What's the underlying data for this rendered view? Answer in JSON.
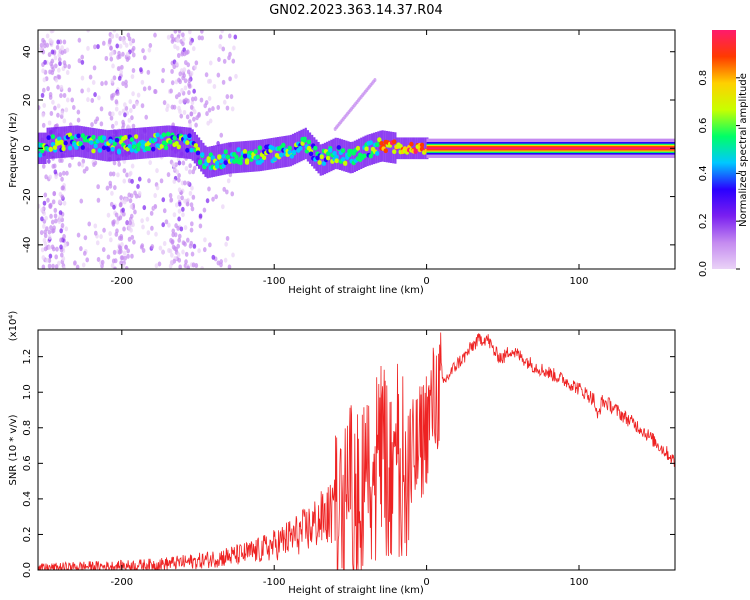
{
  "figure_title": "GN02.2023.363.14.37.R04",
  "chart_data": [
    {
      "type": "heatmap",
      "xlabel": "Height of straight line (km)",
      "ylabel": "Frequency (Hz)",
      "xlim": [
        -255,
        163
      ],
      "ylim": [
        -50,
        49
      ],
      "xticks": [
        -200,
        -100,
        0,
        100
      ],
      "yticks": [
        -40,
        -20,
        0,
        20,
        40
      ],
      "colorbar": {
        "label": "Normalized spectral amplitude",
        "range": [
          0,
          1
        ],
        "ticks": [
          0.0,
          0.2,
          0.4,
          0.6,
          0.8
        ],
        "colors": [
          "#ead3f7",
          "#c48af0",
          "#7a1ff0",
          "#2a00ff",
          "#00c8ff",
          "#00ff66",
          "#c8ff00",
          "#ffd000",
          "#ff3a00",
          "#ff1a6c"
        ]
      },
      "description_points": {
        "band_center_hz": [
          [
            -250,
            2
          ],
          [
            -230,
            3
          ],
          [
            -210,
            1
          ],
          [
            -190,
            2
          ],
          [
            -170,
            3
          ],
          [
            -155,
            2
          ],
          [
            -145,
            -6
          ],
          [
            -130,
            -4
          ],
          [
            -110,
            -3
          ],
          [
            -90,
            -1
          ],
          [
            -80,
            2
          ],
          [
            -70,
            -5
          ],
          [
            -60,
            -2
          ],
          [
            -50,
            -4
          ],
          [
            -40,
            -1
          ],
          [
            -30,
            1
          ],
          [
            -20,
            0
          ],
          [
            -10,
            0
          ],
          [
            0,
            0
          ],
          [
            50,
            0
          ],
          [
            100,
            0
          ],
          [
            163,
            0
          ]
        ]
      }
    },
    {
      "type": "line",
      "xlabel": "Height of straight line (km)",
      "ylabel": "SNR (10 * v/v)",
      "y_multiplier": "(x10⁴)",
      "xlim": [
        -255,
        163
      ],
      "ylim": [
        0,
        1.35
      ],
      "xticks": [
        -200,
        -100,
        0,
        100
      ],
      "yticks": [
        0.0,
        0.2,
        0.4,
        0.6,
        0.8,
        1.0,
        1.2
      ],
      "series": [
        {
          "color": "#ee2222",
          "x": [
            -255,
            -240,
            -225,
            -210,
            -195,
            -180,
            -165,
            -150,
            -135,
            -120,
            -110,
            -100,
            -90,
            -80,
            -70,
            -60,
            -50,
            -45,
            -40,
            -35,
            -30,
            -25,
            -20,
            -15,
            -10,
            -5,
            0,
            5,
            10,
            15,
            20,
            25,
            30,
            35,
            40,
            45,
            50,
            55,
            60,
            70,
            80,
            90,
            100,
            110,
            112,
            115,
            120,
            130,
            140,
            150,
            160,
            163
          ],
          "y": [
            0.01,
            0.015,
            0.02,
            0.02,
            0.025,
            0.03,
            0.04,
            0.05,
            0.07,
            0.09,
            0.11,
            0.14,
            0.18,
            0.22,
            0.28,
            0.33,
            0.4,
            0.45,
            0.5,
            0.55,
            0.6,
            0.62,
            0.62,
            0.6,
            0.6,
            0.68,
            0.82,
            0.95,
            1.04,
            1.1,
            1.16,
            1.2,
            1.26,
            1.3,
            1.3,
            1.22,
            1.19,
            1.24,
            1.21,
            1.15,
            1.11,
            1.07,
            1.02,
            0.96,
            0.85,
            0.95,
            0.93,
            0.86,
            0.8,
            0.72,
            0.64,
            0.6
          ]
        }
      ]
    }
  ]
}
